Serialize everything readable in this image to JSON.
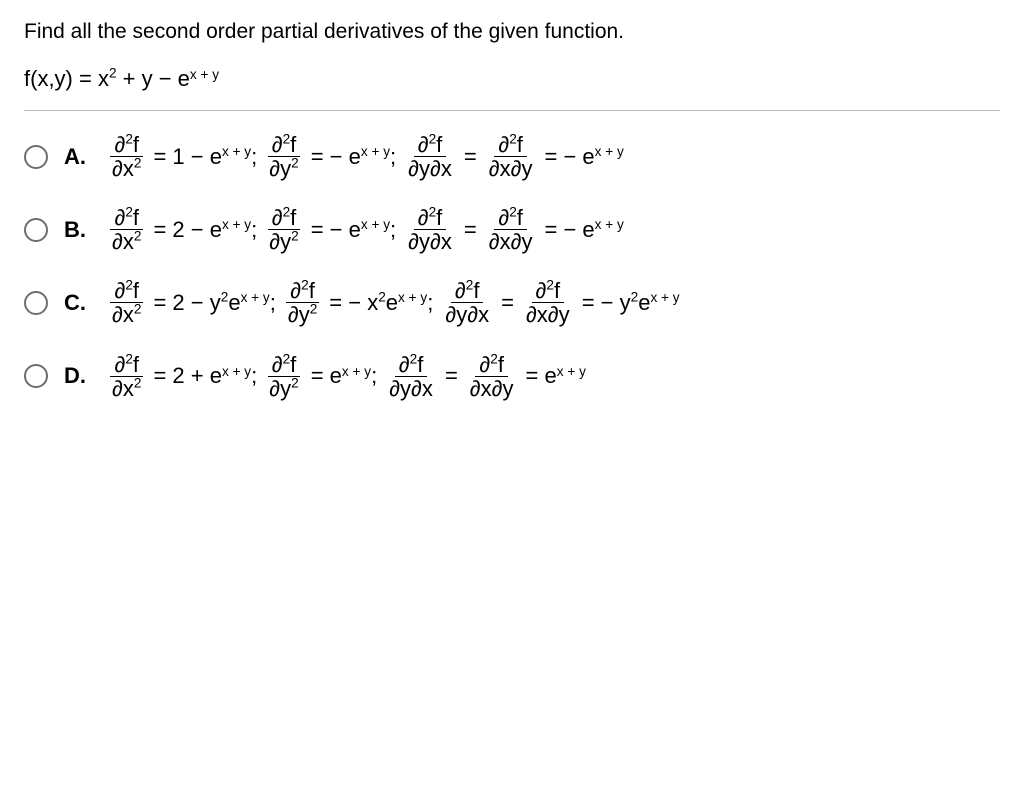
{
  "question": "Find all the second order partial derivatives of the given function.",
  "function_html": "f(x,y) = x<sup>2</sup> + y − e<span class=\"exp\">x + y</span>",
  "d2f": "∂<sup>2</sup>f",
  "dx2": "∂x<sup>2</sup>",
  "dy2": "∂y<sup>2</sup>",
  "dydx": "∂y∂x",
  "dxdy": "∂x∂y",
  "choices": [
    {
      "letter": "A.",
      "fxx": "= 1 − e<span class=\"exp\">x + y</span>;",
      "fyy": "= − e<span class=\"exp\">x + y</span>;",
      "mixed": "= − e<span class=\"exp\">x + y</span>"
    },
    {
      "letter": "B.",
      "fxx": "= 2 − e<span class=\"exp\">x + y</span>;",
      "fyy": "= − e<span class=\"exp\">x + y</span>;",
      "mixed": "= − e<span class=\"exp\">x + y</span>"
    },
    {
      "letter": "C.",
      "fxx": "= 2 − y<sup>2</sup>e<span class=\"exp\">x + y</span>;",
      "fyy": "= − x<sup>2</sup>e<span class=\"exp\">x + y</span>;",
      "mixed": "= − y<sup>2</sup>e<span class=\"exp\">x + y</span>"
    },
    {
      "letter": "D.",
      "fxx": "= 2 + e<span class=\"exp\">x + y</span>;",
      "fyy": "= e<span class=\"exp\">x + y</span>;",
      "mixed": "= e<span class=\"exp\">x + y</span>"
    }
  ]
}
